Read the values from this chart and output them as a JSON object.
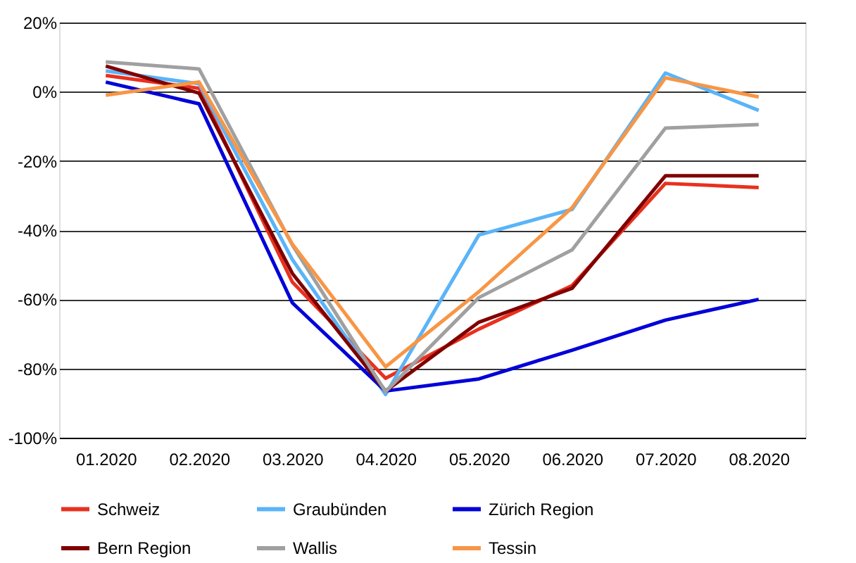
{
  "chart_data": {
    "type": "line",
    "categories": [
      "01.2020",
      "02.2020",
      "03.2020",
      "04.2020",
      "05.2020",
      "06.2020",
      "07.2020",
      "08.2020"
    ],
    "series": [
      {
        "name": "Schweiz",
        "color": "#e8311f",
        "values": [
          4.7,
          1,
          -55,
          -82.8,
          -68.6,
          -56,
          -26.5,
          -27.7
        ]
      },
      {
        "name": "Graubünden",
        "color": "#5ab4f8",
        "values": [
          6,
          2.3,
          -48.5,
          -87.5,
          -41.4,
          -34,
          5.4,
          -5.4
        ]
      },
      {
        "name": "Zürich Region",
        "color": "#0000d8",
        "values": [
          2.8,
          -3.5,
          -61,
          -86.5,
          -83,
          -74.7,
          -66,
          -60
        ]
      },
      {
        "name": "Bern Region",
        "color": "#800000",
        "values": [
          7.4,
          -0.4,
          -52.5,
          -86.5,
          -66.6,
          -56.8,
          -24.3,
          -24.3
        ]
      },
      {
        "name": "Wallis",
        "color": "#a0a0a0",
        "values": [
          8.6,
          6.6,
          -44.3,
          -86.7,
          -59.5,
          -45.7,
          -10.5,
          -9.5
        ]
      },
      {
        "name": "Tessin",
        "color": "#f79646",
        "values": [
          -1,
          2.8,
          -44,
          -79.5,
          -57.8,
          -33.5,
          4,
          -1.5
        ]
      }
    ],
    "ylim": [
      -100,
      20
    ],
    "yticks": [
      {
        "value": -100,
        "label": "-100%"
      },
      {
        "value": -80,
        "label": "-80%"
      },
      {
        "value": -60,
        "label": "-60%"
      },
      {
        "value": -40,
        "label": "-40%"
      },
      {
        "value": -20,
        "label": "-20%"
      },
      {
        "value": 0,
        "label": "0%"
      },
      {
        "value": 20,
        "label": "20%"
      }
    ],
    "grid": "y",
    "legend": "bottom",
    "marker": "none",
    "line_style": "solid"
  }
}
